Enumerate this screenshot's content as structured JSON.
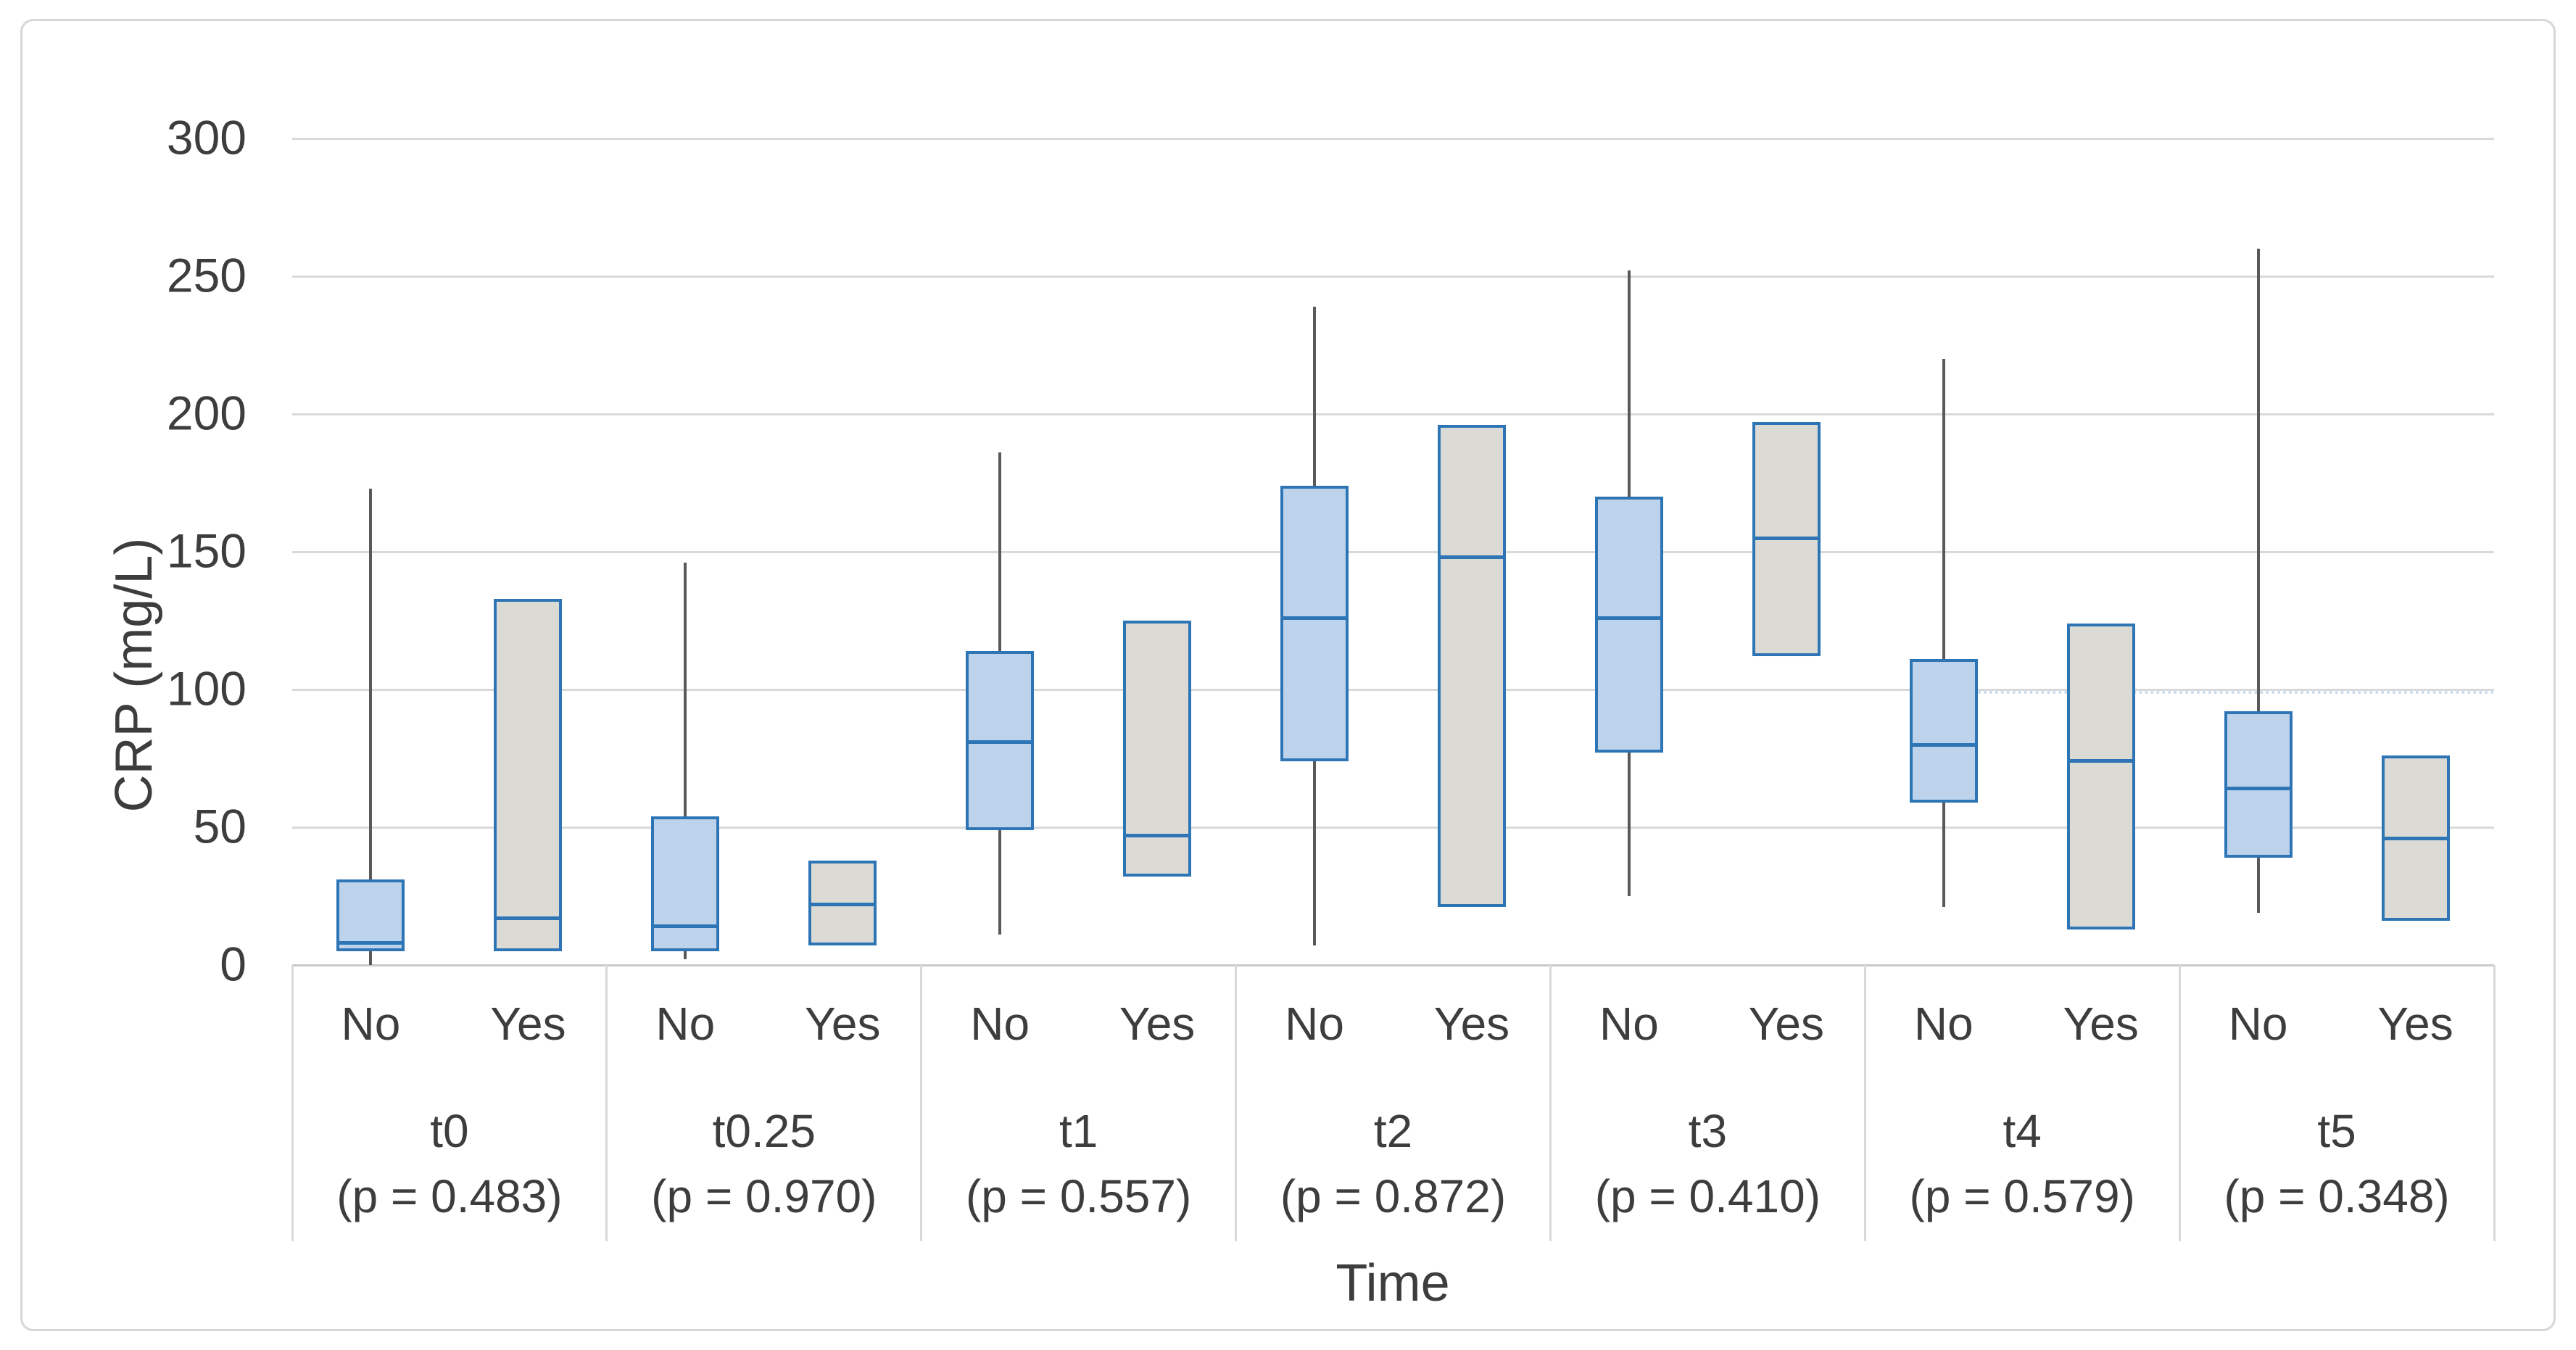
{
  "figure": {
    "background": "#ffffff",
    "border_color": "#d7d7d7"
  },
  "chart_data": {
    "type": "boxplot",
    "title": "",
    "ylabel": "CRP (mg/L)",
    "xlabel": "Time",
    "ylim": [
      0,
      300
    ],
    "yticks": [
      0,
      50,
      100,
      150,
      200,
      250,
      300
    ],
    "grid": true,
    "legend_position": "none",
    "series_labels": [
      "No",
      "Yes"
    ],
    "colors": {
      "no_box_fill": "#bdd3ec",
      "yes_box_fill": "#dcdad4",
      "box_border": "#2e75b6",
      "median_line": "#2e75b6",
      "whisker": "#595959",
      "gridline": "#d9d9d9",
      "axis_line": "#c9c9c9",
      "text": "#3d3d3d"
    },
    "groups": [
      {
        "label": "t0",
        "p_label": "(p = 0.483)",
        "boxes": [
          {
            "series": "No",
            "min": 0,
            "q1": 5,
            "median": 8,
            "q3": 31,
            "max": 173
          },
          {
            "series": "Yes",
            "min": 5,
            "q1": 5,
            "median": 17,
            "q3": 133,
            "max": 133
          }
        ]
      },
      {
        "label": "t0.25",
        "p_label": "(p = 0.970)",
        "boxes": [
          {
            "series": "No",
            "min": 2,
            "q1": 5,
            "median": 14,
            "q3": 54,
            "max": 146
          },
          {
            "series": "Yes",
            "min": 7,
            "q1": 7,
            "median": 22,
            "q3": 38,
            "max": 38
          }
        ]
      },
      {
        "label": "t1",
        "p_label": "(p = 0.557)",
        "boxes": [
          {
            "series": "No",
            "min": 11,
            "q1": 49,
            "median": 81,
            "q3": 114,
            "max": 186
          },
          {
            "series": "Yes",
            "min": 32,
            "q1": 32,
            "median": 47,
            "q3": 125,
            "max": 125
          }
        ]
      },
      {
        "label": "t2",
        "p_label": "(p = 0.872)",
        "boxes": [
          {
            "series": "No",
            "min": 7,
            "q1": 74,
            "median": 126,
            "q3": 174,
            "max": 239
          },
          {
            "series": "Yes",
            "min": 21,
            "q1": 21,
            "median": 148,
            "q3": 196,
            "max": 196
          }
        ]
      },
      {
        "label": "t3",
        "p_label": "(p = 0.410)",
        "boxes": [
          {
            "series": "No",
            "min": 25,
            "q1": 77,
            "median": 126,
            "q3": 170,
            "max": 252
          },
          {
            "series": "Yes",
            "min": 112,
            "q1": 112,
            "median": 155,
            "q3": 197,
            "max": 197
          }
        ]
      },
      {
        "label": "t4",
        "p_label": "(p = 0.579)",
        "boxes": [
          {
            "series": "No",
            "min": 21,
            "q1": 59,
            "median": 80,
            "q3": 111,
            "max": 220
          },
          {
            "series": "Yes",
            "min": 13,
            "q1": 13,
            "median": 74,
            "q3": 124,
            "max": 124
          }
        ]
      },
      {
        "label": "t5",
        "p_label": "(p = 0.348)",
        "boxes": [
          {
            "series": "No",
            "min": 19,
            "q1": 39,
            "median": 64,
            "q3": 92,
            "max": 260
          },
          {
            "series": "Yes",
            "min": 16,
            "q1": 16,
            "median": 46,
            "q3": 76,
            "max": 76
          }
        ]
      }
    ],
    "faint_dotted_line": {
      "value": 99,
      "start_group": "t4",
      "note": "faint dotted light-blue line visible near the 100 gridline across the t4-t5 region"
    }
  }
}
